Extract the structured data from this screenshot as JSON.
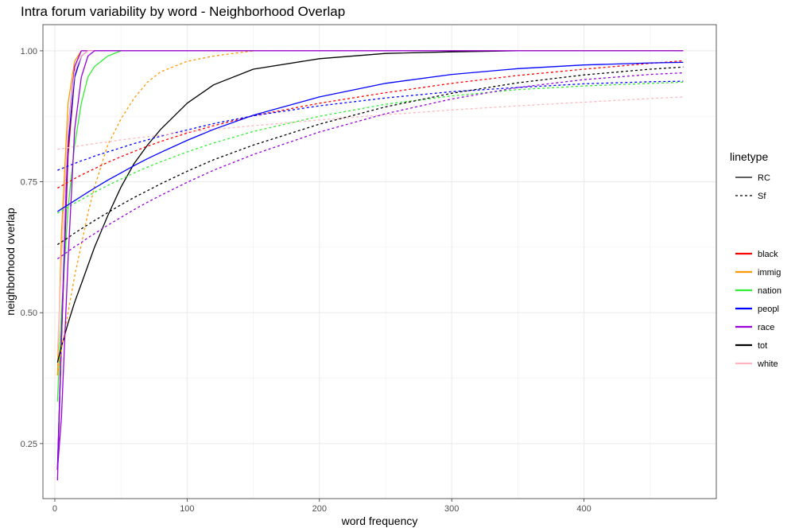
{
  "chart_data": {
    "type": "line",
    "title": "Intra forum variability by word - Neighborhood Overlap",
    "xlabel": "word frequency",
    "ylabel": "neighborhood overlap",
    "xlim": [
      -9,
      500
    ],
    "ylim": [
      0.145,
      1.05
    ],
    "x_ticks": [
      0,
      100,
      200,
      300,
      400
    ],
    "x_tick_labels": [
      "0",
      "100",
      "200",
      "300",
      "400"
    ],
    "y_ticks": [
      0.25,
      0.5,
      0.75,
      1.0
    ],
    "y_tick_labels": [
      "0.25",
      "0.50",
      "0.75",
      "1.00"
    ],
    "grid": true,
    "legend_position": "right",
    "legend_linetype": {
      "title": "linetype",
      "entries": [
        {
          "label": "RC",
          "dash": "solid"
        },
        {
          "label": "Sf",
          "dash": "dashed"
        }
      ]
    },
    "legend_color": {
      "entries": [
        {
          "label": "black",
          "color": "#ff0000"
        },
        {
          "label": "immig",
          "color": "#ff9900"
        },
        {
          "label": "nation",
          "color": "#33ee33"
        },
        {
          "label": "peopl",
          "color": "#0000ff"
        },
        {
          "label": "race",
          "color": "#9900dd"
        },
        {
          "label": "tot",
          "color": "#000000"
        },
        {
          "label": "white",
          "color": "#ffb6c1"
        }
      ]
    },
    "x": [
      2,
      5,
      10,
      15,
      20,
      25,
      30,
      40,
      50,
      60,
      70,
      80,
      100,
      120,
      150,
      200,
      250,
      300,
      350,
      400,
      450,
      475
    ],
    "series": [
      {
        "word": "black",
        "linetype": "RC",
        "color": "#ff0000",
        "values": [
          0.2,
          0.45,
          0.8,
          0.95,
          0.99,
          1.0,
          1.0,
          1.0,
          1.0,
          1.0,
          1.0,
          1.0,
          1.0,
          1.0,
          1.0,
          1.0,
          1.0,
          1.0,
          1.0,
          1.0,
          1.0,
          1.0
        ]
      },
      {
        "word": "immig",
        "linetype": "RC",
        "color": "#ff9900",
        "values": [
          0.38,
          0.65,
          0.9,
          0.98,
          1.0,
          1.0,
          1.0,
          1.0,
          1.0,
          1.0,
          1.0,
          1.0,
          1.0,
          1.0,
          1.0,
          1.0,
          1.0,
          1.0,
          1.0,
          1.0,
          1.0,
          1.0
        ]
      },
      {
        "word": "nation",
        "linetype": "RC",
        "color": "#33ee33",
        "values": [
          0.33,
          0.5,
          0.7,
          0.82,
          0.9,
          0.95,
          0.97,
          0.99,
          1.0,
          1.0,
          1.0,
          1.0,
          1.0,
          1.0,
          1.0,
          1.0,
          1.0,
          1.0,
          1.0,
          1.0,
          1.0,
          1.0
        ]
      },
      {
        "word": "peopl",
        "linetype": "RC",
        "color": "#0000ff",
        "values": [
          0.2,
          0.45,
          0.82,
          0.95,
          0.99,
          1.0,
          1.0,
          1.0,
          1.0,
          1.0,
          1.0,
          1.0,
          1.0,
          1.0,
          1.0,
          1.0,
          1.0,
          1.0,
          1.0,
          1.0,
          1.0,
          1.0
        ]
      },
      {
        "word": "race",
        "linetype": "RC",
        "color": "#9900dd",
        "values": [
          0.18,
          0.45,
          0.85,
          0.97,
          1.0,
          1.0,
          1.0,
          1.0,
          1.0,
          1.0,
          1.0,
          1.0,
          1.0,
          1.0,
          1.0,
          1.0,
          1.0,
          1.0,
          1.0,
          1.0,
          1.0,
          1.0
        ]
      },
      {
        "word": "tot",
        "linetype": "RC",
        "color": "#000000",
        "values": [
          0.405,
          0.435,
          0.48,
          0.52,
          0.555,
          0.59,
          0.625,
          0.685,
          0.74,
          0.785,
          0.82,
          0.85,
          0.9,
          0.935,
          0.965,
          0.985,
          0.995,
          0.998,
          1.0,
          1.0,
          1.0,
          1.0
        ]
      },
      {
        "word": "white",
        "linetype": "RC",
        "color": "#ffb6c1",
        "values": [
          0.42,
          0.6,
          0.85,
          0.96,
          0.99,
          1.0,
          1.0,
          1.0,
          1.0,
          1.0,
          1.0,
          1.0,
          1.0,
          1.0,
          1.0,
          1.0,
          1.0,
          1.0,
          1.0,
          1.0,
          1.0,
          1.0
        ]
      },
      {
        "word": "immig",
        "linetype": "Sf",
        "color": "#ff9900",
        "values": [
          0.38,
          0.43,
          0.5,
          0.57,
          0.63,
          0.69,
          0.74,
          0.82,
          0.87,
          0.91,
          0.94,
          0.96,
          0.98,
          0.99,
          1.0,
          1.0,
          1.0,
          1.0,
          1.0,
          1.0,
          1.0,
          1.0
        ]
      },
      {
        "word": "black",
        "linetype": "Sf",
        "color": "#ff0000",
        "values": [
          0.738,
          0.742,
          0.749,
          0.756,
          0.763,
          0.769,
          0.775,
          0.787,
          0.798,
          0.808,
          0.818,
          0.827,
          0.843,
          0.857,
          0.876,
          0.9,
          0.92,
          0.938,
          0.953,
          0.965,
          0.976,
          0.981
        ]
      },
      {
        "word": "peopl",
        "linetype": "Sf",
        "color": "#0000ff",
        "values": [
          0.772,
          0.775,
          0.78,
          0.785,
          0.79,
          0.794,
          0.799,
          0.807,
          0.815,
          0.823,
          0.83,
          0.837,
          0.849,
          0.861,
          0.876,
          0.895,
          0.91,
          0.922,
          0.93,
          0.937,
          0.941,
          0.942
        ]
      },
      {
        "word": "white",
        "linetype": "Sf",
        "color": "#ffb6c1",
        "values": [
          0.812,
          0.813,
          0.815,
          0.817,
          0.819,
          0.821,
          0.823,
          0.826,
          0.83,
          0.833,
          0.836,
          0.839,
          0.845,
          0.85,
          0.857,
          0.868,
          0.878,
          0.887,
          0.895,
          0.902,
          0.909,
          0.912
        ]
      },
      {
        "word": "nation",
        "linetype": "Sf",
        "color": "#33ee33",
        "values": [
          0.69,
          0.694,
          0.702,
          0.709,
          0.716,
          0.723,
          0.73,
          0.743,
          0.755,
          0.767,
          0.778,
          0.788,
          0.807,
          0.824,
          0.846,
          0.875,
          0.898,
          0.914,
          0.926,
          0.933,
          0.938,
          0.94
        ]
      },
      {
        "word": "tot",
        "linetype": "Sf",
        "color": "#000000",
        "values": [
          0.63,
          0.635,
          0.643,
          0.652,
          0.66,
          0.668,
          0.676,
          0.691,
          0.706,
          0.72,
          0.733,
          0.746,
          0.77,
          0.792,
          0.82,
          0.86,
          0.893,
          0.919,
          0.939,
          0.954,
          0.965,
          0.969
        ]
      },
      {
        "word": "race",
        "linetype": "Sf",
        "color": "#9900dd",
        "values": [
          0.603,
          0.608,
          0.617,
          0.626,
          0.634,
          0.643,
          0.651,
          0.667,
          0.682,
          0.697,
          0.711,
          0.724,
          0.749,
          0.772,
          0.802,
          0.845,
          0.88,
          0.908,
          0.93,
          0.945,
          0.955,
          0.958
        ]
      },
      {
        "word": "peopl",
        "linetype": "RC",
        "color": "#0000ff",
        "values": [
          0.693,
          0.698,
          0.706,
          0.714,
          0.722,
          0.73,
          0.738,
          0.753,
          0.767,
          0.781,
          0.794,
          0.806,
          0.829,
          0.85,
          0.877,
          0.912,
          0.938,
          0.955,
          0.966,
          0.973,
          0.977,
          0.978
        ]
      },
      {
        "word": "race",
        "linetype": "RC",
        "color": "#9900dd",
        "values": [
          0.2,
          0.3,
          0.6,
          0.85,
          0.95,
          0.99,
          1.0,
          1.0,
          1.0,
          1.0,
          1.0,
          1.0,
          1.0,
          1.0,
          1.0,
          1.0,
          1.0,
          1.0,
          1.0,
          1.0,
          1.0,
          1.0
        ]
      }
    ]
  }
}
